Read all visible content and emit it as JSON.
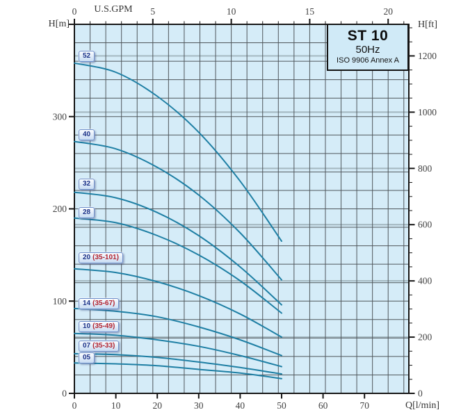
{
  "chart_data": {
    "type": "line",
    "title": "ST 10",
    "subtitle": "50Hz",
    "note": "ISO 9906 Annex A",
    "legend_position": "badges-left-inside-plot",
    "grid": "on",
    "axes": {
      "top": {
        "unit": "U.S.GPM",
        "ticks": [
          0,
          5,
          10,
          15,
          20
        ],
        "minor_step_gpm": 1
      },
      "bottom": {
        "unit": "Q[l/min]",
        "ticks": [
          0,
          10,
          20,
          30,
          40,
          50,
          60,
          70
        ]
      },
      "left": {
        "unit": "H[m]",
        "ticks": [
          0,
          100,
          200,
          300
        ],
        "range_m": [
          0,
          400
        ],
        "grid_step_m": 20
      },
      "right": {
        "unit": "H[ft]",
        "ticks": [
          0,
          200,
          400,
          600,
          800,
          1000,
          1200
        ],
        "minor_step_ft": 50,
        "accent_grid_step_ft": 200
      }
    },
    "q_lmin": [
      0,
      10,
      20,
      30,
      40,
      50
    ],
    "series": [
      {
        "badge": "52",
        "range": "",
        "head_m": [
          358,
          348,
          322,
          283,
          230,
          165
        ]
      },
      {
        "badge": "40",
        "range": "",
        "head_m": [
          273,
          265,
          245,
          215,
          174,
          123
        ]
      },
      {
        "badge": "32",
        "range": "",
        "head_m": [
          218,
          212,
          196,
          171,
          137,
          96
        ]
      },
      {
        "badge": "28",
        "range": "",
        "head_m": [
          190,
          185,
          171,
          150,
          122,
          87
        ]
      },
      {
        "badge": "20",
        "range": "(35-101)",
        "head_m": [
          135,
          131,
          121,
          106,
          86,
          61
        ]
      },
      {
        "badge": "14",
        "range": "(35-67)",
        "head_m": [
          92,
          89,
          83,
          72,
          58,
          41
        ]
      },
      {
        "badge": "10",
        "range": "(35-49)",
        "head_m": [
          65,
          63,
          58,
          51,
          41,
          29
        ]
      },
      {
        "badge": "07",
        "range": "(35-33)",
        "head_m": [
          43,
          42,
          39,
          34,
          28,
          21
        ]
      },
      {
        "badge": "05",
        "range": "",
        "head_m": [
          33,
          32,
          30,
          26,
          22,
          16
        ]
      }
    ],
    "colors": {
      "plot_bg": "#d5ecf8",
      "curve": "#1e7fa4",
      "grid": "#4f565b",
      "grid_accent": "#a6bac3",
      "axis": "#161616",
      "tick_text": "#414141",
      "badge_text": "#1c3288",
      "badge_range_text": "#b22330"
    }
  }
}
